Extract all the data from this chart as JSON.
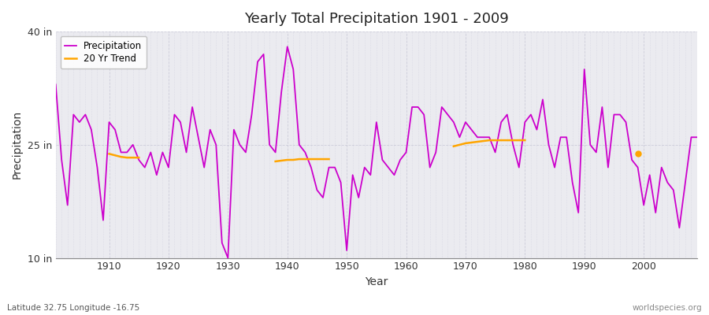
{
  "title": "Yearly Total Precipitation 1901 - 2009",
  "xlabel": "Year",
  "ylabel": "Precipitation",
  "fig_color": "#ffffff",
  "plot_bg_color": "#ebebf0",
  "precip_color": "#cc00cc",
  "trend_color": "#ffa500",
  "ylim_bottom": 10,
  "ylim_top": 40,
  "years": [
    1901,
    1902,
    1903,
    1904,
    1905,
    1906,
    1907,
    1908,
    1909,
    1910,
    1911,
    1912,
    1913,
    1914,
    1915,
    1916,
    1917,
    1918,
    1919,
    1920,
    1921,
    1922,
    1923,
    1924,
    1925,
    1926,
    1927,
    1928,
    1929,
    1930,
    1931,
    1932,
    1933,
    1934,
    1935,
    1936,
    1937,
    1938,
    1939,
    1940,
    1941,
    1942,
    1943,
    1944,
    1945,
    1946,
    1947,
    1948,
    1949,
    1950,
    1951,
    1952,
    1953,
    1954,
    1955,
    1956,
    1957,
    1958,
    1959,
    1960,
    1961,
    1962,
    1963,
    1964,
    1965,
    1966,
    1967,
    1968,
    1969,
    1970,
    1971,
    1972,
    1973,
    1974,
    1975,
    1976,
    1977,
    1978,
    1979,
    1980,
    1981,
    1982,
    1983,
    1984,
    1985,
    1986,
    1987,
    1988,
    1989,
    1990,
    1991,
    1992,
    1993,
    1994,
    1995,
    1996,
    1997,
    1998,
    1999,
    2000,
    2001,
    2002,
    2003,
    2004,
    2005,
    2006,
    2007,
    2008,
    2009
  ],
  "precip": [
    33,
    23,
    17,
    29,
    28,
    29,
    27,
    22,
    15,
    28,
    27,
    24,
    24,
    25,
    23,
    22,
    24,
    21,
    24,
    22,
    29,
    28,
    24,
    30,
    26,
    22,
    27,
    25,
    12,
    10,
    27,
    25,
    24,
    29,
    36,
    37,
    25,
    24,
    32,
    38,
    35,
    25,
    24,
    22,
    19,
    18,
    22,
    22,
    20,
    11,
    21,
    18,
    22,
    21,
    28,
    23,
    22,
    21,
    23,
    24,
    30,
    30,
    29,
    22,
    24,
    30,
    29,
    28,
    26,
    28,
    27,
    26,
    26,
    26,
    24,
    28,
    29,
    25,
    22,
    28,
    29,
    27,
    31,
    25,
    22,
    26,
    26,
    20,
    16,
    35,
    25,
    24,
    30,
    22,
    29,
    29,
    28,
    23,
    22,
    17,
    21,
    16,
    22,
    20,
    19,
    14,
    20,
    26,
    26
  ],
  "trend_s1_years": [
    1910,
    1911,
    1912,
    1913,
    1914,
    1915
  ],
  "trend_s1_vals": [
    23.8,
    23.6,
    23.4,
    23.3,
    23.3,
    23.3
  ],
  "trend_s2_years": [
    1938,
    1939,
    1940,
    1941,
    1942,
    1943,
    1944,
    1945,
    1946,
    1947
  ],
  "trend_s2_vals": [
    22.8,
    22.9,
    23.0,
    23.0,
    23.1,
    23.1,
    23.1,
    23.1,
    23.1,
    23.1
  ],
  "trend_s3_years": [
    1968,
    1969,
    1970,
    1971,
    1972,
    1973,
    1974,
    1975,
    1976,
    1977,
    1978,
    1979,
    1980
  ],
  "trend_s3_vals": [
    24.8,
    25.0,
    25.2,
    25.3,
    25.4,
    25.5,
    25.6,
    25.6,
    25.6,
    25.6,
    25.6,
    25.6,
    25.6
  ],
  "trend_s4_years": [
    1999
  ],
  "trend_s4_vals": [
    23.8
  ],
  "xticks": [
    1910,
    1920,
    1930,
    1940,
    1950,
    1960,
    1970,
    1980,
    1990,
    2000
  ],
  "ytick_vals": [
    10,
    25,
    40
  ],
  "ytick_labels": [
    "10 in",
    "25 in",
    "40 in"
  ],
  "footer_left": "Latitude 32.75 Longitude -16.75",
  "footer_right": "worldspecies.org"
}
